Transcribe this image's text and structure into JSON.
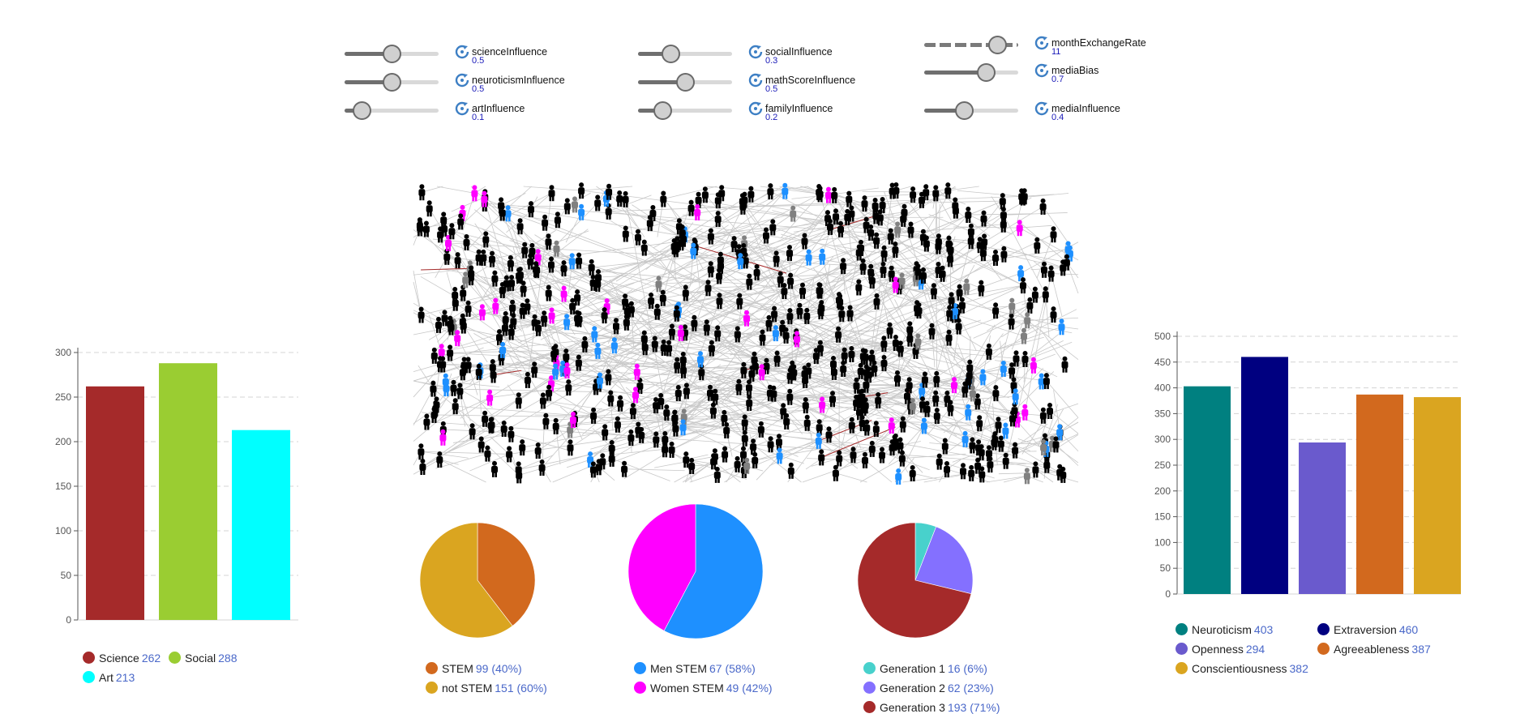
{
  "sliders": [
    {
      "name": "scienceInfluence",
      "value": "0.5",
      "fraction": 0.5
    },
    {
      "name": "neuroticismInfluence",
      "value": "0.5",
      "fraction": 0.5
    },
    {
      "name": "artInfluence",
      "value": "0.1",
      "fraction": 0.1
    },
    {
      "name": "socialInfluence",
      "value": "0.3",
      "fraction": 0.3
    },
    {
      "name": "mathScoreInfluence",
      "value": "0.5",
      "fraction": 0.5
    },
    {
      "name": "familyInfluence",
      "value": "0.2",
      "fraction": 0.2
    },
    {
      "name": "monthExchangeRate",
      "value": "11",
      "fraction": 0.85
    },
    {
      "name": "mediaBias",
      "value": "0.7",
      "fraction": 0.7
    },
    {
      "name": "mediaInfluence",
      "value": "0.4",
      "fraction": 0.4
    }
  ],
  "colors": {
    "men": "#1e90ff",
    "women": "#ff00ff",
    "gray": "#808080",
    "default": "#000000",
    "edge": "#c8c8c8",
    "edge_highlight": "#a52a2a",
    "axis_text": "#555555",
    "legend_value": "#4a68c9"
  },
  "chart_data": [
    {
      "type": "bar",
      "categories": [
        "Science",
        "Social",
        "Art"
      ],
      "values": [
        262,
        288,
        213
      ],
      "colors": [
        "#a52a2a",
        "#9acd32",
        "#00ffff"
      ],
      "ylim": [
        0,
        300
      ],
      "yticks": [
        "0",
        "50",
        "100",
        "150",
        "200",
        "250",
        "300"
      ],
      "grid": true,
      "legend": [
        {
          "label": "Science",
          "value": "262"
        },
        {
          "label": "Social",
          "value": "288"
        },
        {
          "label": "Art",
          "value": "213"
        }
      ]
    },
    {
      "type": "pie",
      "slices": [
        {
          "label": "STEM",
          "value": 99,
          "percent": "40%"
        },
        {
          "label": "not STEM",
          "value": 151,
          "percent": "60%"
        }
      ],
      "colors": [
        "#d2691e",
        "#daa520"
      ],
      "legend": [
        {
          "label": "STEM",
          "value": "99 (40%)"
        },
        {
          "label": "not STEM",
          "value": "151 (60%)"
        }
      ]
    },
    {
      "type": "pie",
      "slices": [
        {
          "label": "Men STEM",
          "value": 67,
          "percent": "58%"
        },
        {
          "label": "Women STEM",
          "value": 49,
          "percent": "42%"
        }
      ],
      "colors": [
        "#1e90ff",
        "#ff00ff"
      ],
      "legend": [
        {
          "label": "Men STEM",
          "value": "67 (58%)"
        },
        {
          "label": "Women STEM",
          "value": "49 (42%)"
        }
      ]
    },
    {
      "type": "pie",
      "slices": [
        {
          "label": "Generation 1",
          "value": 16,
          "percent": "6%"
        },
        {
          "label": "Generation 2",
          "value": 62,
          "percent": "23%"
        },
        {
          "label": "Generation 3",
          "value": 193,
          "percent": "71%"
        }
      ],
      "colors": [
        "#48d1cc",
        "#8470ff",
        "#a52a2a"
      ],
      "legend": [
        {
          "label": "Generation 1",
          "value": "16 (6%)"
        },
        {
          "label": "Generation 2",
          "value": "62 (23%)"
        },
        {
          "label": "Generation 3",
          "value": "193 (71%)"
        }
      ]
    },
    {
      "type": "bar",
      "categories": [
        "Neuroticism",
        "Extraversion",
        "Openness",
        "Agreeableness",
        "Conscientiousness"
      ],
      "values": [
        403,
        460,
        294,
        387,
        382
      ],
      "colors": [
        "#008080",
        "#000080",
        "#6a5acd",
        "#d2691e",
        "#daa520"
      ],
      "ylim": [
        0,
        500
      ],
      "yticks": [
        "0",
        "50",
        "100",
        "150",
        "200",
        "250",
        "300",
        "350",
        "400",
        "450",
        "500"
      ],
      "grid": true,
      "legend": [
        {
          "label": "Neuroticism",
          "value": "403"
        },
        {
          "label": "Extraversion",
          "value": "460"
        },
        {
          "label": "Openness",
          "value": "294"
        },
        {
          "label": "Agreeableness",
          "value": "387"
        },
        {
          "label": "Conscientiousness",
          "value": "382"
        }
      ]
    }
  ]
}
